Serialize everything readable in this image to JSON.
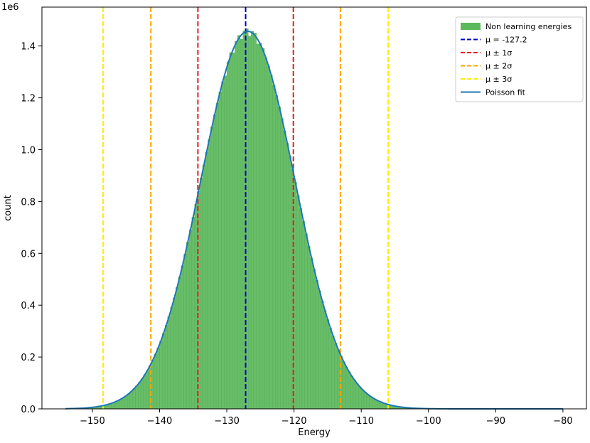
{
  "chart_data": {
    "type": "bar",
    "xlabel": "Energy",
    "ylabel": "count",
    "y_scale_label": "1e6",
    "xlim": [
      -157.5,
      -76.5
    ],
    "ylim": [
      0,
      1.55
    ],
    "x_ticks": [
      -150,
      -140,
      -130,
      -120,
      -110,
      -100,
      -90,
      -80
    ],
    "x_tick_labels": [
      "−150",
      "−140",
      "−130",
      "−120",
      "−110",
      "−100",
      "−90",
      "−80"
    ],
    "y_ticks": [
      0,
      0.2,
      0.4,
      0.6,
      0.8,
      1.0,
      1.2,
      1.4
    ],
    "y_tick_labels": [
      "0.0",
      "0.2",
      "0.4",
      "0.6",
      "0.8",
      "1.0",
      "1.2",
      "1.4"
    ],
    "histogram": {
      "name": "Non learning energies",
      "color": "#5cb85c",
      "bin_start": -154,
      "bin_end": -80,
      "bin_width": 0.4
    },
    "fit": {
      "name": "Poisson fit",
      "color": "#1f77b4",
      "mean": -127.2,
      "sigma": 7.0,
      "peak": 1.455,
      "skew": 0.016
    },
    "vlines": [
      {
        "name": "μ = -127.2",
        "x": -127.2,
        "color": "#0000cc"
      },
      {
        "name": "μ ± 1σ",
        "x": -134.3,
        "color": "#e61e1e"
      },
      {
        "name": "μ ± 1σ",
        "x": -120.1,
        "color": "#e61e1e"
      },
      {
        "name": "μ ± 2σ",
        "x": -141.3,
        "color": "#ffa500"
      },
      {
        "name": "μ ± 2σ",
        "x": -113.1,
        "color": "#ffa500"
      },
      {
        "name": "μ ± 3σ",
        "x": -148.4,
        "color": "#ffee00"
      },
      {
        "name": "μ ± 3σ",
        "x": -106.0,
        "color": "#ffee00"
      }
    ],
    "legend": {
      "placement": "top-right",
      "entries": [
        {
          "label": "Non learning energies",
          "kind": "patch",
          "color": "#5cb85c"
        },
        {
          "label": "μ = -127.2",
          "kind": "dashed",
          "color": "#0000cc"
        },
        {
          "label": "μ ± 1σ",
          "kind": "dashed",
          "color": "#e61e1e"
        },
        {
          "label": "μ ± 2σ",
          "kind": "dashed",
          "color": "#ffa500"
        },
        {
          "label": "μ ± 3σ",
          "kind": "dashed",
          "color": "#ffee00"
        },
        {
          "label": "Poisson fit",
          "kind": "line",
          "color": "#1f77b4"
        }
      ]
    },
    "grid": false
  }
}
